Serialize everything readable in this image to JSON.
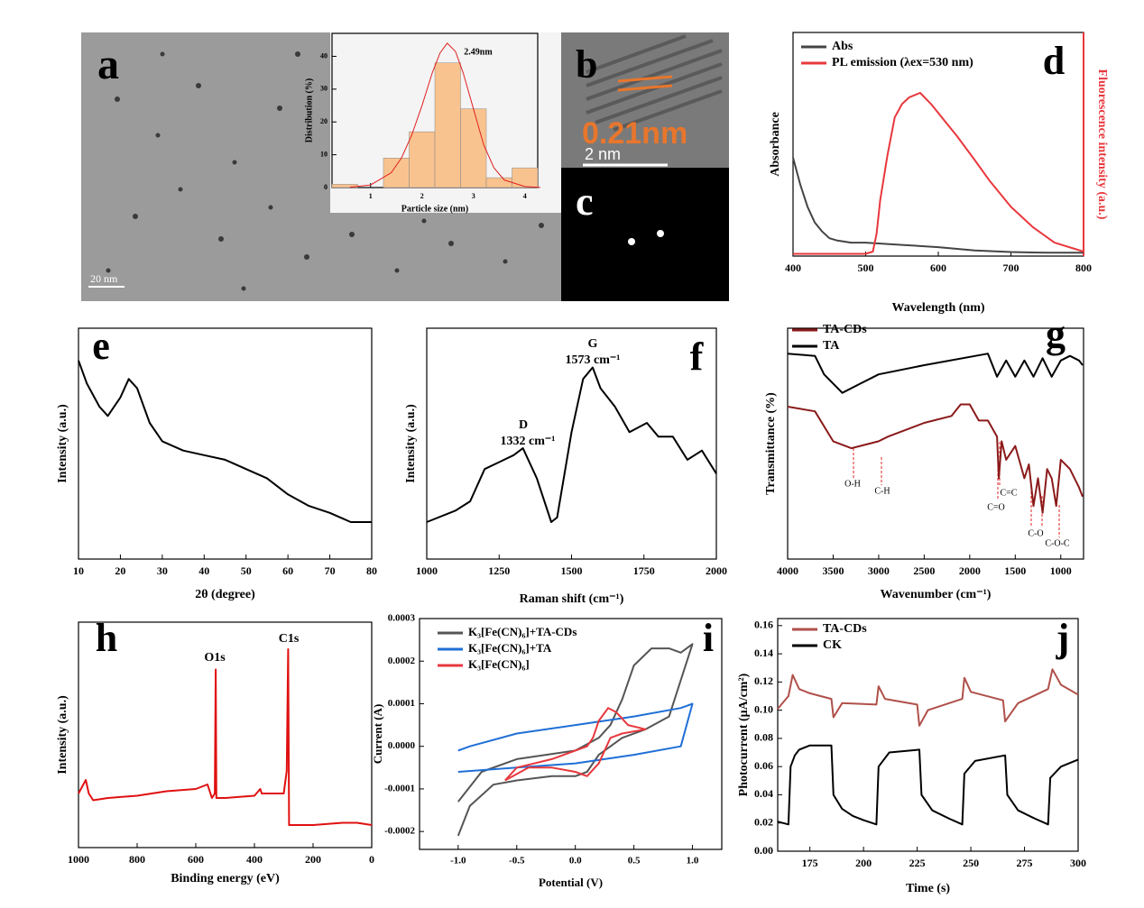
{
  "images": [
    {
      "panel": "a",
      "scale_bar": "20 nm"
    },
    {
      "panel": "b",
      "label": "0.21nm",
      "scale_bar": "2 nm"
    },
    {
      "panel": "c"
    }
  ],
  "chart_data": [
    {
      "type": "histogram",
      "xlabel": "Particle size (nm)",
      "ylabel": "Distribution (%)",
      "bins": [
        0.25,
        0.75,
        1.25,
        1.75,
        2.25,
        2.75,
        3.25,
        3.75,
        4.25
      ],
      "values": [
        1,
        0,
        9,
        17,
        38,
        24,
        3,
        6
      ],
      "color": "#f9c38f",
      "fit": {
        "color": "#e02020",
        "x": [
          0.6,
          1.0,
          1.4,
          1.6,
          1.8,
          2.0,
          2.2,
          2.35,
          2.49,
          2.65,
          2.8,
          3.0,
          3.2,
          3.4,
          3.6,
          4.0,
          4.3
        ],
        "values": [
          0.1,
          0.8,
          4.5,
          9,
          16,
          25,
          35,
          41,
          44,
          41.5,
          35,
          24,
          13,
          6,
          2.3,
          0.3,
          0.05
        ]
      },
      "annotations": [
        "2.49nm"
      ],
      "xlim": [
        0.25,
        4.25
      ],
      "xticks": [
        1,
        2,
        3,
        4
      ],
      "ylim": [
        0,
        47
      ],
      "yticks": [
        0,
        10,
        20,
        30,
        40
      ]
    },
    {
      "type": "line",
      "panel": "d",
      "xlabel": "Wavelength (nm)",
      "ylabel": "Absorbance",
      "y2label": "Fluorescence intensity (a.u.)",
      "xlim": [
        400,
        800
      ],
      "xticks": [
        400,
        500,
        600,
        700,
        800
      ],
      "ylim": [
        0,
        100
      ],
      "y2lim": [
        0,
        100
      ],
      "series": [
        {
          "name": "Abs",
          "color": "#444444",
          "x": [
            400,
            410,
            420,
            430,
            440,
            450,
            460,
            480,
            500,
            550,
            600,
            650,
            700,
            750,
            800
          ],
          "values": [
            44,
            32,
            22,
            15,
            11,
            8,
            7,
            6,
            6,
            5,
            4,
            2.5,
            1.8,
            1.5,
            1.5
          ]
        },
        {
          "name": "PL emission (λex=530 nm)",
          "color": "#e8383d",
          "axis": "y2",
          "x": [
            400,
            450,
            500,
            510,
            515,
            520,
            530,
            540,
            550,
            560,
            575,
            590,
            610,
            625,
            650,
            670,
            700,
            730,
            760,
            800
          ],
          "values": [
            1,
            1,
            1,
            2,
            10,
            25,
            45,
            62,
            68,
            71,
            73,
            68,
            60,
            54,
            43,
            34,
            22,
            13,
            6,
            2
          ]
        }
      ]
    },
    {
      "type": "line",
      "panel": "e",
      "xlabel": "2θ (degree)",
      "ylabel": "Intensity (a.u.)",
      "xlim": [
        10,
        80
      ],
      "xticks": [
        10,
        20,
        30,
        40,
        50,
        60,
        70,
        80
      ],
      "ylim": [
        0,
        100
      ],
      "series": [
        {
          "color": "#000000",
          "x": [
            10,
            12,
            15,
            17,
            20,
            22,
            24,
            27,
            30,
            35,
            40,
            45,
            50,
            55,
            60,
            65,
            70,
            75,
            80
          ],
          "values": [
            86,
            76,
            66,
            62,
            70,
            78,
            74,
            59,
            51,
            47,
            45,
            43,
            39,
            35,
            28,
            23,
            20,
            16,
            16
          ]
        }
      ]
    },
    {
      "type": "line",
      "panel": "f",
      "xlabel": "Raman shift (cm⁻¹)",
      "ylabel": "Intensity (a.u.)",
      "xlim": [
        1000,
        2000
      ],
      "xticks": [
        1000,
        1250,
        1500,
        1750,
        2000
      ],
      "ylim": [
        0,
        100
      ],
      "annotations": [
        "G",
        "1573 cm⁻¹",
        "D",
        "1332 cm⁻¹"
      ],
      "series": [
        {
          "color": "#000000",
          "x": [
            1000,
            1100,
            1150,
            1200,
            1250,
            1300,
            1332,
            1380,
            1430,
            1450,
            1500,
            1540,
            1573,
            1600,
            1650,
            1700,
            1760,
            1800,
            1850,
            1900,
            1950,
            2000
          ],
          "values": [
            16,
            21,
            25,
            39,
            42,
            45,
            48,
            35,
            16,
            18,
            55,
            78,
            83,
            74,
            66,
            55,
            59,
            53,
            53,
            43,
            47,
            37
          ]
        }
      ]
    },
    {
      "type": "line",
      "panel": "g",
      "xlabel": "Wavenumber (cm⁻¹)",
      "ylabel": "Transmittance (%)",
      "xlim": [
        4000,
        750
      ],
      "xticks": [
        4000,
        3500,
        3000,
        2500,
        2000,
        1500,
        1000
      ],
      "ylim": [
        0,
        100
      ],
      "annotations": [
        "O-H",
        "C-H",
        "C=C",
        "C=O",
        "C-O",
        "C-O-C"
      ],
      "series": [
        {
          "name": "TA-CDs",
          "color": "#8b1a1a",
          "x": [
            4000,
            3700,
            3500,
            3300,
            3000,
            2900,
            2500,
            2200,
            2100,
            2000,
            1900,
            1800,
            1700,
            1680,
            1650,
            1600,
            1500,
            1400,
            1350,
            1300,
            1250,
            1200,
            1150,
            1100,
            1050,
            1000,
            900,
            800,
            760
          ],
          "values": [
            66,
            64,
            51,
            48,
            51,
            53,
            59,
            62,
            67,
            67,
            60,
            60,
            53,
            35,
            51,
            43,
            49,
            35,
            41,
            23,
            35,
            20,
            39,
            35,
            23,
            43,
            39,
            31,
            27
          ]
        },
        {
          "name": "TA",
          "color": "#000000",
          "x": [
            4000,
            3700,
            3600,
            3400,
            3200,
            3000,
            2500,
            1800,
            1700,
            1600,
            1500,
            1400,
            1300,
            1200,
            1100,
            1000,
            900,
            800,
            760
          ],
          "values": [
            89,
            88,
            80,
            72,
            76,
            80,
            84,
            89,
            79,
            86,
            79,
            86,
            79,
            87,
            79,
            86,
            88,
            86,
            84
          ]
        }
      ]
    },
    {
      "type": "line",
      "panel": "h",
      "xlabel": "Binding energy (eV)",
      "ylabel": "Intensity (a.u.)",
      "xlim": [
        1000,
        0
      ],
      "xticks": [
        1000,
        800,
        600,
        400,
        200,
        0
      ],
      "ylim": [
        0,
        100
      ],
      "annotations": [
        "O1s",
        "C1s"
      ],
      "series": [
        {
          "color": "#e01010",
          "x": [
            1000,
            975,
            965,
            950,
            900,
            800,
            700,
            600,
            560,
            545,
            535,
            532,
            530,
            500,
            400,
            380,
            375,
            300,
            290,
            285,
            282,
            200,
            100,
            50,
            0
          ],
          "values": [
            24,
            30,
            24,
            21,
            22,
            23,
            25,
            26,
            28,
            22,
            24,
            79,
            22,
            22,
            23,
            26,
            24,
            24,
            34,
            88,
            10,
            10,
            11,
            11,
            10
          ]
        }
      ]
    },
    {
      "type": "line",
      "panel": "i",
      "xlabel": "Potential (V)",
      "ylabel": "Current (A)",
      "xlim": [
        -1.33,
        1.25
      ],
      "xticks": [
        {
          "value": -1,
          "label": "-1.0"
        },
        -0.5,
        {
          "value": 0,
          "label": "0.0"
        },
        0.5,
        {
          "value": 1,
          "label": "1.0"
        }
      ],
      "ylim": [
        -0.000242,
        0.0003
      ],
      "yticks": [
        -0.0002,
        -0.0001,
        {
          "value": 0,
          "label": "0.0000"
        },
        0.0001,
        0.0002,
        0.0003
      ],
      "series": [
        {
          "name": "K₃[Fe(CN)₆]+TA-CDs",
          "color": "#555555",
          "x": [
            -1.0,
            -0.9,
            -0.7,
            -0.5,
            -0.2,
            0.0,
            0.1,
            0.2,
            0.4,
            0.6,
            0.8,
            1.0,
            0.9,
            0.8,
            0.65,
            0.5,
            0.4,
            0.3,
            0.2,
            0.0,
            -0.5,
            -0.8,
            -1.0
          ],
          "values": [
            -0.00021,
            -0.00014,
            -9e-05,
            -8e-05,
            -7e-05,
            -7e-05,
            -6e-05,
            -2e-05,
            2e-05,
            4e-05,
            7e-05,
            0.00024,
            0.00022,
            0.00023,
            0.00023,
            0.00019,
            0.00011,
            5e-05,
            2e-05,
            -1e-05,
            -3e-05,
            -6e-05,
            -0.00013
          ]
        },
        {
          "name": "K₃[Fe(CN)₆]+TA",
          "color": "#1f6fd6",
          "x": [
            -1.0,
            -0.5,
            0.0,
            0.5,
            0.9,
            1.0,
            0.9,
            0.5,
            0.0,
            -0.5,
            -0.9,
            -1.0
          ],
          "values": [
            -6e-05,
            -5e-05,
            -4e-05,
            -2e-05,
            0.0,
            0.0001,
            9e-05,
            7e-05,
            5e-05,
            3e-05,
            0.0,
            -1e-05
          ]
        },
        {
          "name": "K₃[Fe(CN)₆]",
          "color": "#e8383d",
          "x": [
            -0.6,
            -0.5,
            -0.2,
            0.0,
            0.1,
            0.15,
            0.2,
            0.28,
            0.35,
            0.45,
            0.6,
            0.4,
            0.3,
            0.2,
            0.1,
            0.0,
            -0.2,
            -0.4,
            -0.6
          ],
          "values": [
            -8e-05,
            -5e-05,
            -3e-05,
            -1e-05,
            0.0,
            2e-05,
            6e-05,
            9e-05,
            8e-05,
            5e-05,
            4e-05,
            3e-05,
            2e-05,
            -4e-05,
            -7e-05,
            -6e-05,
            -5e-05,
            -5e-05,
            -8e-05
          ]
        }
      ]
    },
    {
      "type": "line",
      "panel": "j",
      "xlabel": "Time (s)",
      "ylabel": "Photocurrent (μA/cm²)",
      "xlim": [
        160,
        300
      ],
      "xticks": [
        175,
        200,
        225,
        250,
        275,
        300
      ],
      "ylim": [
        0,
        0.165
      ],
      "yticks": [
        {
          "value": 0,
          "label": "0.00"
        },
        0.02,
        0.04,
        0.06,
        0.08,
        {
          "value": 0.1,
          "label": "0.10"
        },
        0.12,
        0.14,
        0.16
      ],
      "series": [
        {
          "name": "TA-CDs",
          "color": "#b0504a",
          "x": [
            160,
            165,
            167,
            170,
            175,
            185,
            186,
            190,
            206,
            207,
            210,
            225,
            226,
            230,
            246,
            247,
            250,
            265,
            266,
            272,
            286,
            288,
            292,
            300
          ],
          "values": [
            0.101,
            0.11,
            0.125,
            0.115,
            0.112,
            0.108,
            0.095,
            0.105,
            0.104,
            0.117,
            0.108,
            0.104,
            0.089,
            0.1,
            0.108,
            0.123,
            0.113,
            0.107,
            0.092,
            0.105,
            0.115,
            0.129,
            0.118,
            0.111
          ]
        },
        {
          "name": "CK",
          "color": "#000000",
          "x": [
            160,
            165,
            166,
            168,
            170,
            175,
            185,
            186,
            190,
            195,
            200,
            206,
            207,
            212,
            226,
            227,
            232,
            240,
            246,
            247,
            252,
            266,
            267,
            272,
            280,
            286,
            287,
            292,
            300
          ],
          "values": [
            0.021,
            0.019,
            0.06,
            0.068,
            0.072,
            0.075,
            0.075,
            0.04,
            0.03,
            0.025,
            0.022,
            0.019,
            0.06,
            0.07,
            0.072,
            0.04,
            0.029,
            0.023,
            0.019,
            0.055,
            0.064,
            0.068,
            0.04,
            0.029,
            0.023,
            0.019,
            0.052,
            0.06,
            0.065
          ]
        }
      ]
    }
  ]
}
